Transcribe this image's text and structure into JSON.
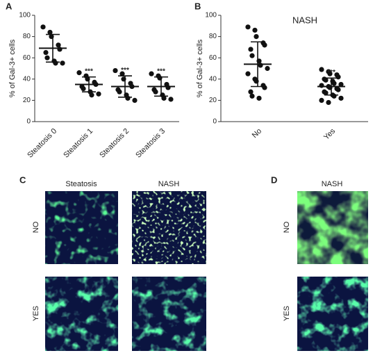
{
  "chart_data": [
    {
      "type": "scatter",
      "panel_label": "A",
      "ylabel": "% of Gal-3+ cells",
      "categories": [
        "Steatosis 0",
        "Steatosis 1",
        "Steatosis 2",
        "Steatosis 3"
      ],
      "points": [
        [
          89,
          84,
          80,
          72,
          68,
          65,
          60,
          57,
          55,
          55
        ],
        [
          46,
          43,
          40,
          37,
          35,
          33,
          31,
          28,
          25,
          26
        ],
        [
          48,
          45,
          40,
          36,
          33,
          30,
          28,
          25,
          22,
          20
        ],
        [
          45,
          43,
          41,
          35,
          32,
          30,
          28,
          25,
          22,
          21
        ]
      ],
      "mean": [
        69,
        35,
        33,
        33
      ],
      "sd": [
        13,
        7,
        10,
        9
      ],
      "significance": [
        null,
        "***",
        "***",
        "***"
      ],
      "color": "#111111",
      "ylim": [
        0,
        100
      ],
      "yticks": [
        0,
        20,
        40,
        60,
        80,
        100
      ]
    },
    {
      "type": "scatter",
      "panel_label": "B",
      "title": "NASH",
      "ylabel": "% of Gal-3+ cells",
      "categories": [
        "No",
        "Yes"
      ],
      "points": [
        [
          89,
          86,
          80,
          74,
          72,
          68,
          62,
          57,
          53,
          50,
          45,
          40,
          38,
          34,
          32,
          28,
          24,
          22
        ],
        [
          49,
          47,
          45,
          44,
          42,
          40,
          39,
          38,
          36,
          35,
          34,
          33,
          32,
          31,
          30,
          28,
          27,
          25,
          24,
          22,
          20,
          18
        ]
      ],
      "mean": [
        54,
        33
      ],
      "sd": [
        21,
        8
      ],
      "significance": [
        null,
        "***"
      ],
      "color": "#111111",
      "ylim": [
        0,
        100
      ],
      "yticks": [
        0,
        20,
        40,
        60,
        80,
        100
      ]
    }
  ],
  "micrographs": {
    "C": {
      "label": "C",
      "columns": [
        "Steatosis",
        "NASH"
      ],
      "rows": [
        "NO",
        "YES"
      ]
    },
    "D": {
      "label": "D",
      "columns": [
        "NASH"
      ],
      "rows": [
        "NO",
        "YES"
      ]
    }
  }
}
